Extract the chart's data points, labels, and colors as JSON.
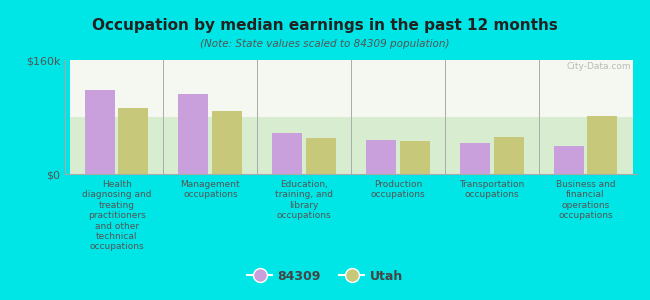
{
  "title": "Occupation by median earnings in the past 12 months",
  "subtitle": "(Note: State values scaled to 84309 population)",
  "background_color": "#00e5e5",
  "plot_bg_top": "#d8ecd0",
  "plot_bg_bottom": "#f5f8f0",
  "categories": [
    "Health\ndiagnosing and\ntreating\npractitioners\nand other\ntechnical\noccupations",
    "Management\noccupations",
    "Education,\ntraining, and\nlibrary\noccupations",
    "Production\noccupations",
    "Transportation\noccupations",
    "Business and\nfinancial\noperations\noccupations"
  ],
  "values_84309": [
    118000,
    112000,
    58000,
    48000,
    44000,
    40000
  ],
  "values_utah": [
    92000,
    88000,
    50000,
    47000,
    52000,
    82000
  ],
  "color_84309": "#c9a0dc",
  "color_utah": "#c8c87a",
  "ylim": [
    0,
    160000
  ],
  "ytick_labels": [
    "$0",
    "$160k"
  ],
  "legend_84309": "84309",
  "legend_utah": "Utah",
  "watermark": "City-Data.com"
}
